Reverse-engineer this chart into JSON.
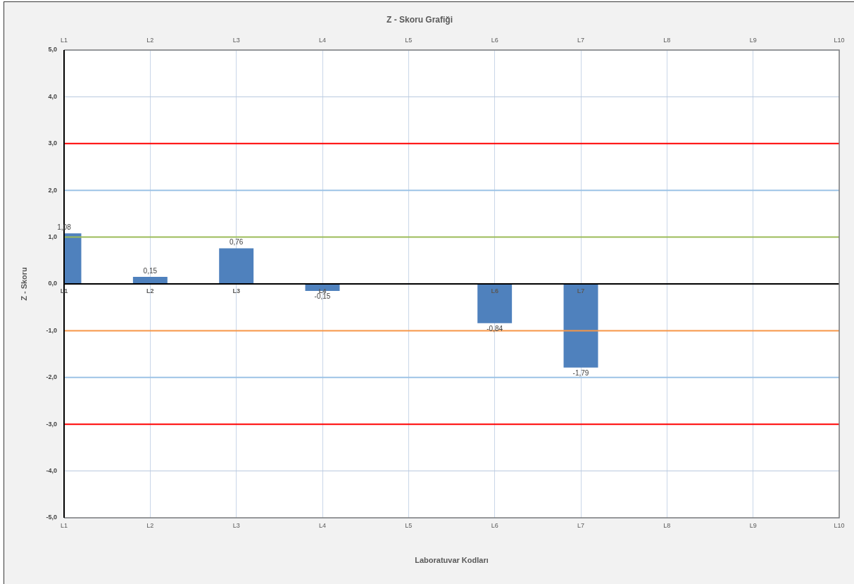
{
  "chart_data": {
    "type": "bar",
    "title": "Z - Skoru Grafiği",
    "xlabel": "Laboratuvar Kodları",
    "ylabel": "Z - Skoru",
    "categories": [
      "L1",
      "L2",
      "L3",
      "L4",
      "L5",
      "L6",
      "L7",
      "L8",
      "L9",
      "L10"
    ],
    "values": [
      1.08,
      0.15,
      0.76,
      -0.15,
      null,
      -0.84,
      -1.79,
      null,
      null,
      null
    ],
    "color": "#4f81bd",
    "value_labels": [
      "1,08",
      "0,15",
      "0,76",
      "-0,15",
      null,
      "-0,84",
      "-1,79",
      null,
      null,
      null
    ],
    "ylim": [
      -5,
      5
    ],
    "yticks": [
      {
        "value": -5,
        "label": "-5,0"
      },
      {
        "value": -4,
        "label": "-4,0"
      },
      {
        "value": -3,
        "label": "-3,0"
      },
      {
        "value": -2,
        "label": "-2,0"
      },
      {
        "value": -1,
        "label": "-1,0"
      },
      {
        "value": 0,
        "label": "0,0"
      },
      {
        "value": 1,
        "label": "1,0"
      },
      {
        "value": 2,
        "label": "2,0"
      },
      {
        "value": 3,
        "label": "3,0"
      },
      {
        "value": 4,
        "label": "4,0"
      },
      {
        "value": 5,
        "label": "5,0"
      }
    ],
    "grid": true,
    "ref_lines": [
      {
        "axis": "y",
        "value": 3,
        "color": "#ff0000"
      },
      {
        "axis": "y",
        "value": 2,
        "color": "#9dc3e6"
      },
      {
        "axis": "y",
        "value": 1,
        "color": "#9bbb59"
      },
      {
        "axis": "y",
        "value": 0,
        "color": "#000000"
      },
      {
        "axis": "y",
        "value": -1,
        "color": "#f79646"
      },
      {
        "axis": "y",
        "value": -2,
        "color": "#9dc3e6"
      },
      {
        "axis": "y",
        "value": -3,
        "color": "#ff0000"
      }
    ],
    "annotations": [
      {
        "text": "L1",
        "x": "L1",
        "y": 0
      },
      {
        "text": "L2",
        "x": "L2",
        "y": 0
      },
      {
        "text": "L3",
        "x": "L3",
        "y": 0
      },
      {
        "text": "L4",
        "x": "L4",
        "y": 0
      },
      {
        "text": "L6",
        "x": "L6",
        "y": 0
      },
      {
        "text": "L7",
        "x": "L7",
        "y": 0
      }
    ]
  }
}
